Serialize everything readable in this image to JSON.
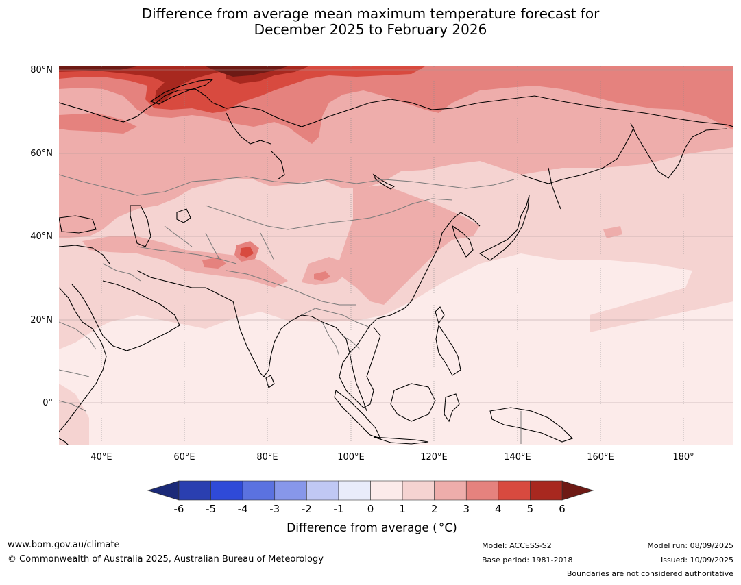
{
  "title_line1": "Difference from average mean maximum temperature forecast for",
  "title_line2": "December 2025 to February 2026",
  "lat_labels": [
    "80°N",
    "60°N",
    "40°N",
    "20°N",
    "0°"
  ],
  "lon_labels": [
    "40°E",
    "60°E",
    "80°E",
    "100°E",
    "120°E",
    "140°E",
    "160°E",
    "180°"
  ],
  "colorbar": {
    "ticks": [
      "-6",
      "-5",
      "-4",
      "-3",
      "-2",
      "-1",
      "0",
      "1",
      "2",
      "3",
      "4",
      "5",
      "6"
    ],
    "colors": [
      "#1b2a78",
      "#2a3fb0",
      "#2f4ad8",
      "#5b72e0",
      "#8797ea",
      "#c0c8f4",
      "#e9ecfa",
      "#fcebea",
      "#f5d3d1",
      "#eeadab",
      "#e5827e",
      "#d84a3f",
      "#a8281f",
      "#6e1a15"
    ],
    "label": "Difference from average (",
    "unit": "°C)"
  },
  "footer": {
    "website": "www.bom.gov.au/climate",
    "copyright": "© Commonwealth of Australia 2025, Australian Bureau of Meteorology",
    "model": "Model: ACCESS-S2",
    "base_period": "Base period: 1981-2018",
    "model_run": "Model run: 08/09/2025",
    "issued": "Issued: 10/09/2025",
    "disclaimer": "Boundaries are not considered authoritative"
  }
}
